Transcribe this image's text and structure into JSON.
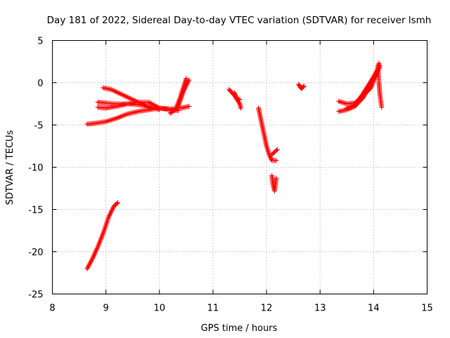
{
  "chart_data": {
    "type": "scatter",
    "title": "Day 181 of 2022, Sidereal Day-to-day VTEC variation (SDTVAR) for receiver lsmh",
    "xlabel": "GPS time / hours",
    "ylabel": "SDTVAR / TECUs",
    "xlim": [
      8,
      15
    ],
    "ylim": [
      -25,
      5
    ],
    "xticks": [
      "8",
      "9",
      "10",
      "11",
      "12",
      "13",
      "14",
      "15"
    ],
    "yticks": [
      "5",
      "0",
      "-5",
      "-10",
      "-15",
      "-20",
      "-25"
    ],
    "grid": true,
    "marker": "+",
    "series": [
      {
        "name": "SDTVAR",
        "color": "#ff0000",
        "tracks": [
          [
            [
              8.65,
              -22.0
            ],
            [
              8.75,
              -20.8
            ],
            [
              8.85,
              -19.4
            ],
            [
              8.95,
              -17.8
            ],
            [
              9.05,
              -15.9
            ],
            [
              9.15,
              -14.6
            ],
            [
              9.22,
              -14.2
            ]
          ],
          [
            [
              8.65,
              -4.9
            ],
            [
              8.8,
              -4.8
            ],
            [
              9.0,
              -4.6
            ],
            [
              9.2,
              -4.2
            ],
            [
              9.4,
              -3.7
            ],
            [
              9.6,
              -3.4
            ],
            [
              9.8,
              -3.2
            ],
            [
              10.0,
              -3.0
            ],
            [
              10.2,
              -3.1
            ],
            [
              10.4,
              -3.0
            ],
            [
              10.55,
              -2.8
            ]
          ],
          [
            [
              8.85,
              -2.3
            ],
            [
              9.0,
              -2.4
            ],
            [
              9.2,
              -2.5
            ],
            [
              9.4,
              -2.5
            ],
            [
              9.6,
              -2.3
            ],
            [
              9.8,
              -2.3
            ],
            [
              10.0,
              -3.0
            ],
            [
              10.2,
              -3.2
            ],
            [
              10.35,
              -3.3
            ]
          ],
          [
            [
              8.95,
              -0.6
            ],
            [
              9.1,
              -0.8
            ],
            [
              9.3,
              -1.4
            ],
            [
              9.5,
              -2.0
            ],
            [
              9.7,
              -2.6
            ],
            [
              9.85,
              -3.1
            ]
          ],
          [
            [
              8.85,
              -2.9
            ],
            [
              9.0,
              -3.0
            ],
            [
              9.2,
              -2.8
            ],
            [
              9.4,
              -2.5
            ],
            [
              9.6,
              -2.6
            ],
            [
              9.8,
              -2.8
            ],
            [
              10.0,
              -3.2
            ]
          ],
          [
            [
              10.2,
              -3.6
            ],
            [
              10.3,
              -3.2
            ],
            [
              10.4,
              -1.5
            ],
            [
              10.5,
              0.5
            ]
          ],
          [
            [
              10.35,
              -2.8
            ],
            [
              10.45,
              -1.0
            ],
            [
              10.55,
              0.3
            ]
          ],
          [
            [
              11.3,
              -0.8
            ],
            [
              11.4,
              -1.5
            ],
            [
              11.5,
              -2.5
            ],
            [
              11.52,
              -3.0
            ]
          ],
          [
            [
              11.4,
              -1.2
            ],
            [
              11.45,
              -1.9
            ],
            [
              11.5,
              -2.0
            ]
          ],
          [
            [
              11.85,
              -3.0
            ],
            [
              11.9,
              -4.5
            ],
            [
              11.95,
              -6.0
            ],
            [
              12.0,
              -7.5
            ],
            [
              12.05,
              -8.5
            ],
            [
              12.1,
              -9.2
            ],
            [
              12.18,
              -9.2
            ]
          ],
          [
            [
              12.1,
              -8.5
            ],
            [
              12.2,
              -7.9
            ]
          ],
          [
            [
              12.1,
              -11.0
            ],
            [
              12.12,
              -12.0
            ],
            [
              12.15,
              -12.8
            ],
            [
              12.18,
              -11.3
            ]
          ],
          [
            [
              12.6,
              -0.2
            ],
            [
              12.65,
              -0.7
            ],
            [
              12.7,
              -0.4
            ]
          ],
          [
            [
              13.35,
              -2.2
            ],
            [
              13.5,
              -2.5
            ],
            [
              13.65,
              -2.4
            ],
            [
              13.8,
              -1.6
            ],
            [
              13.95,
              -0.6
            ],
            [
              14.05,
              1.0
            ],
            [
              14.1,
              2.3
            ]
          ],
          [
            [
              13.35,
              -3.4
            ],
            [
              13.5,
              -3.2
            ],
            [
              13.65,
              -2.8
            ],
            [
              13.8,
              -1.8
            ],
            [
              13.95,
              -0.2
            ],
            [
              14.05,
              1.0
            ],
            [
              14.12,
              2.0
            ]
          ],
          [
            [
              13.5,
              -3.0
            ],
            [
              13.65,
              -2.6
            ],
            [
              13.8,
              -1.3
            ],
            [
              13.95,
              0.2
            ],
            [
              14.1,
              1.8
            ]
          ],
          [
            [
              14.08,
              2.0
            ],
            [
              14.1,
              0.0
            ],
            [
              14.12,
              -1.5
            ],
            [
              14.15,
              -2.9
            ]
          ]
        ]
      }
    ]
  }
}
